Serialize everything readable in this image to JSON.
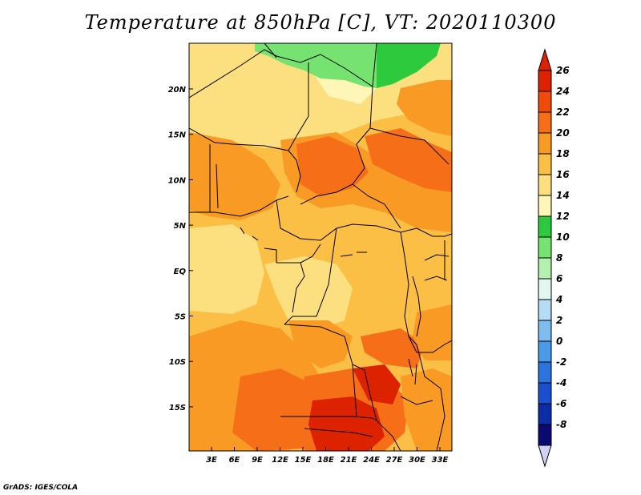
{
  "title": "Temperature at 850hPa [C], VT: 2020110300",
  "credit": "GrADS: IGES/COLA",
  "map": {
    "lon_labels": [
      "3E",
      "6E",
      "9E",
      "12E",
      "15E",
      "18E",
      "21E",
      "24E",
      "27E",
      "30E",
      "33E"
    ],
    "lat_labels": [
      "20N",
      "15N",
      "10N",
      "5N",
      "EQ",
      "5S",
      "10S",
      "15S"
    ]
  },
  "colorbar": {
    "labels": [
      "26",
      "24",
      "22",
      "20",
      "18",
      "16",
      "14",
      "12",
      "10",
      "8",
      "6",
      "4",
      "2",
      "0",
      "-2",
      "-4",
      "-6",
      "-8"
    ],
    "colors": [
      "#dd2200",
      "#f04b0a",
      "#f76e18",
      "#f99a25",
      "#fbbf45",
      "#fce080",
      "#fdf6b6",
      "#2eca3d",
      "#76e26f",
      "#b4f0ae",
      "#e2f7f0",
      "#b4dcf5",
      "#7fbdf0",
      "#4a9ae8",
      "#2b74dd",
      "#1a50cf",
      "#0d2ca9",
      "#0a0a72"
    ],
    "top_arrow_color": "#dd2200",
    "bottom_arrow_color": "#ced3f6"
  },
  "colors": {
    "background": "#ffffff",
    "border": "#000000"
  }
}
